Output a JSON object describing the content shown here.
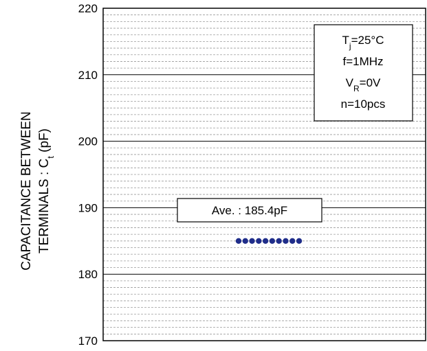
{
  "chart_data": {
    "type": "scatter",
    "ylim": [
      170,
      220
    ],
    "major_ticks": [
      170,
      180,
      190,
      200,
      210,
      220
    ],
    "minor_step": 1,
    "grid": true,
    "ylabel": {
      "line1": "CAPACITANCE BETWEEN",
      "line2_prefix": "TERMINALS : C",
      "line2_sub": "t",
      "line2_suffix": " (pF)"
    },
    "conditions": [
      {
        "base": "T",
        "sub": "j",
        "rest": "=25°C"
      },
      {
        "base": "f=1MHz",
        "sub": "",
        "rest": ""
      },
      {
        "base": "V",
        "sub": "R",
        "rest": "=0V"
      },
      {
        "base": "n=10pcs",
        "sub": "",
        "rest": ""
      }
    ],
    "average_label": "Ave. : 185.4pF",
    "points": [
      185,
      185,
      185,
      185,
      185,
      185,
      185,
      185,
      185,
      185
    ],
    "point_color": "#1f2d8a"
  }
}
